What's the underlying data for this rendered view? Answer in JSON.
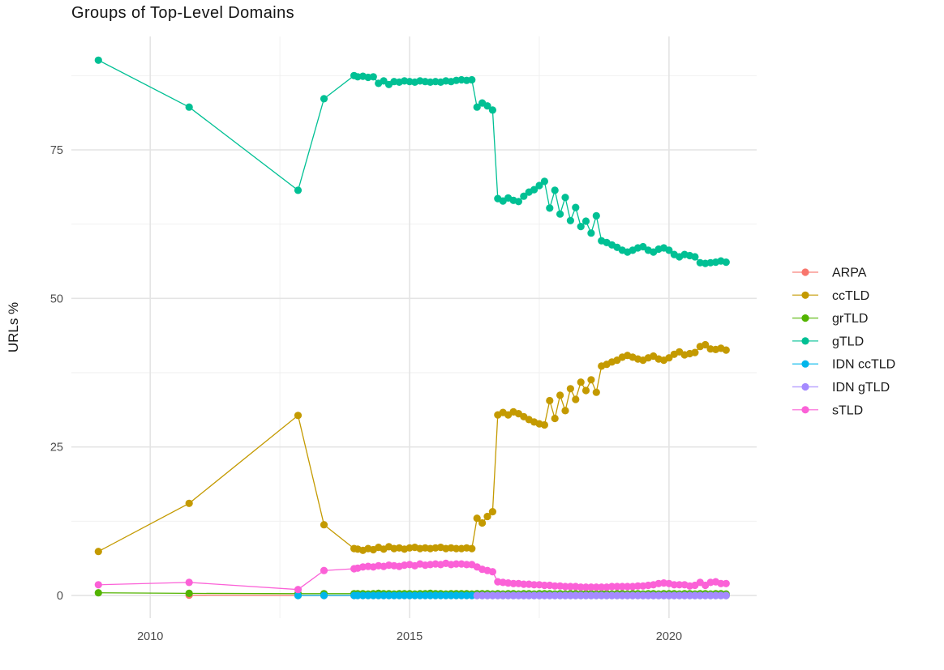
{
  "chart_data": {
    "type": "line",
    "title": "Groups of Top-Level Domains",
    "xlabel": "",
    "ylabel": "URLs %",
    "x_ticks": [
      {
        "v": 2010,
        "label": "2010"
      },
      {
        "v": 2015,
        "label": "2015"
      },
      {
        "v": 2020,
        "label": "2020"
      }
    ],
    "x_minor": [
      2012.5,
      2017.5
    ],
    "y_ticks": [
      {
        "v": 0,
        "label": "0"
      },
      {
        "v": 25,
        "label": "25"
      },
      {
        "v": 50,
        "label": "50"
      },
      {
        "v": 75,
        "label": "75"
      }
    ],
    "y_minor": [
      12.5,
      37.5,
      62.5,
      87.5
    ],
    "xlim": [
      2008.48,
      2021.69
    ],
    "ylim": [
      -3.82,
      94.09
    ],
    "grid": true,
    "legend_position": "right",
    "series": [
      {
        "name": "ARPA",
        "color": "#F8766D",
        "points_early": [
          [
            2010.75,
            0.05
          ],
          [
            2012.85,
            0.0
          ],
          [
            2013.35,
            0.0
          ],
          [
            2013.93,
            0.0
          ]
        ],
        "dense_start": 2014.0,
        "dense_step": 0.1,
        "dense_const": {
          "n": 72,
          "v": 0.0
        }
      },
      {
        "name": "ccTLD",
        "color": "#C49A00",
        "points_early": [
          [
            2009.0,
            7.4
          ],
          [
            2010.75,
            15.5
          ],
          [
            2012.85,
            30.3
          ],
          [
            2013.35,
            11.9
          ],
          [
            2013.93,
            7.9
          ]
        ],
        "dense_start": 2014.0,
        "dense_step": 0.1,
        "dense_values": [
          7.8,
          7.6,
          7.9,
          7.7,
          8.1,
          7.8,
          8.2,
          7.9,
          8.0,
          7.8,
          8.0,
          8.1,
          7.9,
          8.0,
          7.9,
          8.0,
          8.1,
          7.9,
          8.0,
          7.9,
          7.9,
          8.0,
          7.9,
          13.0,
          12.2,
          13.3,
          14.1,
          30.4,
          30.8,
          30.4,
          30.9,
          30.6,
          30.1,
          29.6,
          29.2,
          28.9,
          28.7,
          32.8,
          29.8,
          33.7,
          31.1,
          34.8,
          33.0,
          35.9,
          34.5,
          36.3,
          34.2,
          38.6,
          38.9,
          39.3,
          39.6,
          40.1,
          40.4,
          40.1,
          39.8,
          39.6,
          40.0,
          40.3,
          39.8,
          39.6,
          40.0,
          40.6,
          41.0,
          40.5,
          40.7,
          40.9,
          41.9,
          42.2,
          41.5,
          41.4,
          41.6,
          41.3
        ]
      },
      {
        "name": "grTLD",
        "color": "#53B400",
        "points_early": [
          [
            2009.0,
            0.45
          ],
          [
            2010.75,
            0.35
          ],
          [
            2012.85,
            0.3
          ],
          [
            2013.35,
            0.3
          ],
          [
            2013.93,
            0.3
          ]
        ],
        "dense_start": 2014.0,
        "dense_step": 0.1,
        "dense_values": [
          0.3,
          0.3,
          0.25,
          0.3,
          0.35,
          0.3,
          0.3,
          0.25,
          0.3,
          0.3,
          0.3,
          0.25,
          0.3,
          0.3,
          0.35,
          0.3,
          0.3,
          0.25,
          0.3,
          0.3,
          0.3,
          0.3,
          0.25,
          0.3,
          0.3,
          0.3,
          0.25,
          0.3,
          0.25,
          0.3,
          0.3,
          0.25,
          0.3,
          0.3,
          0.25,
          0.3,
          0.3,
          0.3,
          0.25,
          0.3,
          0.25,
          0.3,
          0.3,
          0.25,
          0.3,
          0.3,
          0.25,
          0.3,
          0.3,
          0.25,
          0.3,
          0.3,
          0.25,
          0.3,
          0.3,
          0.25,
          0.3,
          0.3,
          0.25,
          0.3,
          0.3,
          0.3,
          0.25,
          0.3,
          0.3,
          0.25,
          0.3,
          0.3,
          0.25,
          0.3,
          0.3,
          0.25
        ]
      },
      {
        "name": "gTLD",
        "color": "#00C094",
        "points_early": [
          [
            2009.0,
            90.1
          ],
          [
            2010.75,
            82.2
          ],
          [
            2012.85,
            68.2
          ],
          [
            2013.35,
            83.6
          ],
          [
            2013.93,
            87.5
          ]
        ],
        "dense_start": 2014.0,
        "dense_step": 0.1,
        "dense_values": [
          87.3,
          87.4,
          87.2,
          87.3,
          86.2,
          86.6,
          86.0,
          86.5,
          86.4,
          86.6,
          86.5,
          86.4,
          86.6,
          86.5,
          86.4,
          86.5,
          86.4,
          86.6,
          86.5,
          86.7,
          86.8,
          86.7,
          86.8,
          82.2,
          82.9,
          82.4,
          81.7,
          66.8,
          66.4,
          66.9,
          66.5,
          66.3,
          67.2,
          67.9,
          68.3,
          69.0,
          69.7,
          65.2,
          68.2,
          64.2,
          67.0,
          63.1,
          65.3,
          62.1,
          63.0,
          61.0,
          63.9,
          59.7,
          59.4,
          59.0,
          58.6,
          58.1,
          57.8,
          58.1,
          58.5,
          58.7,
          58.1,
          57.8,
          58.3,
          58.5,
          58.1,
          57.4,
          57.0,
          57.4,
          57.2,
          57.0,
          56.0,
          55.9,
          56.0,
          56.1,
          56.3,
          56.1
        ]
      },
      {
        "name": "IDN ccTLD",
        "color": "#00B6EB",
        "points_early": [
          [
            2012.85,
            0.0
          ],
          [
            2013.35,
            0.0
          ],
          [
            2013.93,
            0.0
          ]
        ],
        "dense_start": 2014.0,
        "dense_step": 0.1,
        "dense_const": {
          "n": 72,
          "v": 0.0
        }
      },
      {
        "name": "IDN gTLD",
        "color": "#A58AFF",
        "points_early": [],
        "dense_start": 2016.3,
        "dense_step": 0.1,
        "dense_const": {
          "n": 49,
          "v": 0.0
        }
      },
      {
        "name": "sTLD",
        "color": "#FB61D7",
        "points_early": [
          [
            2009.0,
            1.8
          ],
          [
            2010.75,
            2.2
          ],
          [
            2012.85,
            1.0
          ],
          [
            2013.35,
            4.2
          ],
          [
            2013.93,
            4.5
          ]
        ],
        "dense_start": 2014.0,
        "dense_step": 0.1,
        "dense_values": [
          4.6,
          4.8,
          4.9,
          4.8,
          5.0,
          4.9,
          5.1,
          5.0,
          4.9,
          5.1,
          5.2,
          5.0,
          5.3,
          5.1,
          5.2,
          5.3,
          5.2,
          5.4,
          5.2,
          5.3,
          5.3,
          5.2,
          5.2,
          4.8,
          4.4,
          4.2,
          4.0,
          2.3,
          2.2,
          2.1,
          2.0,
          2.0,
          1.9,
          1.9,
          1.8,
          1.8,
          1.7,
          1.7,
          1.6,
          1.6,
          1.5,
          1.5,
          1.5,
          1.4,
          1.4,
          1.4,
          1.4,
          1.4,
          1.4,
          1.5,
          1.5,
          1.5,
          1.5,
          1.5,
          1.6,
          1.6,
          1.7,
          1.8,
          2.0,
          2.1,
          2.0,
          1.8,
          1.8,
          1.8,
          1.6,
          1.7,
          2.2,
          1.7,
          2.2,
          2.3,
          2.0,
          2.0
        ]
      }
    ]
  }
}
